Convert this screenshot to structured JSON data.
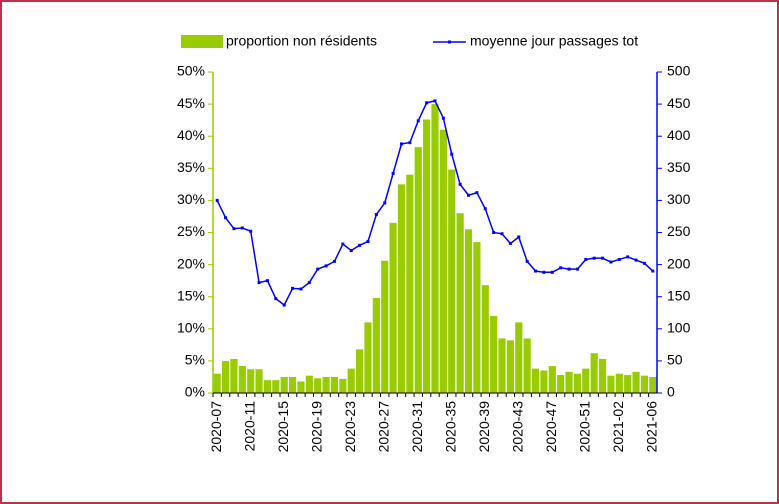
{
  "chart_data": {
    "type": "bar_line",
    "categories": [
      "2020-07",
      null,
      null,
      null,
      "2020-11",
      null,
      null,
      null,
      "2020-15",
      null,
      null,
      null,
      "2020-19",
      null,
      null,
      null,
      "2020-23",
      null,
      null,
      null,
      "2020-27",
      null,
      null,
      null,
      "2020-31",
      null,
      null,
      null,
      "2020-35",
      null,
      null,
      null,
      "2020-39",
      null,
      null,
      null,
      "2020-43",
      null,
      null,
      null,
      "2020-47",
      null,
      null,
      null,
      "2020-51",
      null,
      null,
      null,
      "2021-02",
      null,
      null,
      null,
      "2021-06"
    ],
    "series": [
      {
        "name": "proportion non résidents",
        "type": "bar",
        "color": "#99cc00",
        "axis": "y",
        "values": [
          3,
          5,
          5.3,
          4.2,
          3.7,
          3.7,
          2,
          2,
          2.5,
          2.5,
          1.8,
          2.7,
          2.3,
          2.5,
          2.5,
          2.2,
          3.8,
          6.8,
          11,
          14.8,
          20.6,
          26.5,
          32.5,
          34,
          38.3,
          42.6,
          45,
          41,
          34.8,
          28,
          25.5,
          23.5,
          16.8,
          12,
          8.5,
          8.2,
          11,
          8.5,
          3.8,
          3.5,
          4.2,
          2.8,
          3.3,
          3,
          3.8,
          6.2,
          5.3,
          2.7,
          3,
          2.8,
          3.3,
          2.7,
          2.5
        ]
      },
      {
        "name": "moyenne jour passages tot",
        "type": "line",
        "color": "#0000ff",
        "axis": "y2",
        "values": [
          300,
          273,
          256,
          257,
          252,
          172,
          175,
          147,
          137,
          163,
          162,
          172,
          193,
          198,
          205,
          232,
          222,
          230,
          236,
          278,
          296,
          342,
          388,
          390,
          424,
          452,
          455,
          428,
          372,
          325,
          308,
          312,
          287,
          250,
          248,
          233,
          243,
          205,
          190,
          188,
          188,
          195,
          193,
          193,
          208,
          210,
          210,
          204,
          208,
          212,
          207,
          202,
          190
        ]
      }
    ],
    "ylim": [
      0,
      50
    ],
    "yticks": [
      {
        "value": 0,
        "label": "0%"
      },
      {
        "value": 5,
        "label": "5%"
      },
      {
        "value": 10,
        "label": "10%"
      },
      {
        "value": 15,
        "label": "15%"
      },
      {
        "value": 20,
        "label": "20%"
      },
      {
        "value": 25,
        "label": "25%"
      },
      {
        "value": 30,
        "label": "30%"
      },
      {
        "value": 35,
        "label": "35%"
      },
      {
        "value": 40,
        "label": "40%"
      },
      {
        "value": 45,
        "label": "45%"
      },
      {
        "value": 50,
        "label": "50%"
      }
    ],
    "y2lim": [
      0,
      500
    ],
    "y2ticks": [
      0,
      50,
      100,
      150,
      200,
      250,
      300,
      350,
      400,
      450,
      500
    ],
    "legend": "top"
  }
}
